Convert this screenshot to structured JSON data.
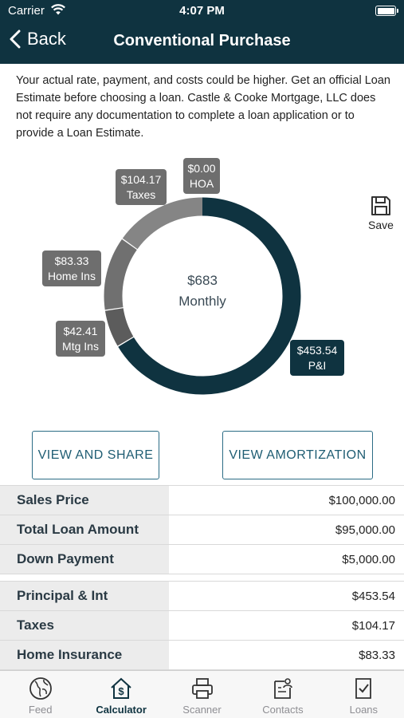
{
  "status": {
    "carrier": "Carrier",
    "time": "4:07 PM"
  },
  "nav": {
    "back_label": "Back",
    "title": "Conventional Purchase"
  },
  "disclaimer": "Your actual rate, payment, and costs could be higher. Get an official Loan Estimate before choosing a loan. Castle & Cooke Mortgage, LLC does not require any documentation to complete a loan application or to provide a Loan Estimate.",
  "donut": {
    "center_value": "$683",
    "center_label": "Monthly",
    "segments": [
      {
        "key": "pi",
        "amount": "$453.54",
        "label": "P&I",
        "value": 453.54,
        "color": "#0f3340"
      },
      {
        "key": "mtg",
        "amount": "$42.41",
        "label": "Mtg Ins",
        "value": 42.41,
        "color": "#5c5c5c"
      },
      {
        "key": "home",
        "amount": "$83.33",
        "label": "Home Ins",
        "value": 83.33,
        "color": "#707070"
      },
      {
        "key": "taxes",
        "amount": "$104.17",
        "label": "Taxes",
        "value": 104.17,
        "color": "#858585"
      },
      {
        "key": "hoa",
        "amount": "$0.00",
        "label": "HOA",
        "value": 0,
        "color": "#999999"
      }
    ]
  },
  "save_label": "Save",
  "buttons": {
    "view_share": "VIEW AND SHARE",
    "view_amortization": "VIEW AMORTIZATION"
  },
  "loan_table": [
    {
      "label": "Sales Price",
      "value": "$100,000.00"
    },
    {
      "label": "Total Loan Amount",
      "value": "$95,000.00"
    },
    {
      "label": "Down Payment",
      "value": "$5,000.00"
    }
  ],
  "payment_table": [
    {
      "label": "Principal & Int",
      "value": "$453.54"
    },
    {
      "label": "Taxes",
      "value": "$104.17"
    },
    {
      "label": "Home Insurance",
      "value": "$83.33"
    }
  ],
  "tabs": [
    {
      "label": "Feed",
      "icon": "globe-icon",
      "active": false
    },
    {
      "label": "Calculator",
      "icon": "house-dollar-icon",
      "active": true
    },
    {
      "label": "Scanner",
      "icon": "printer-icon",
      "active": false
    },
    {
      "label": "Contacts",
      "icon": "contacts-icon",
      "active": false
    },
    {
      "label": "Loans",
      "icon": "document-check-icon",
      "active": false
    }
  ]
}
